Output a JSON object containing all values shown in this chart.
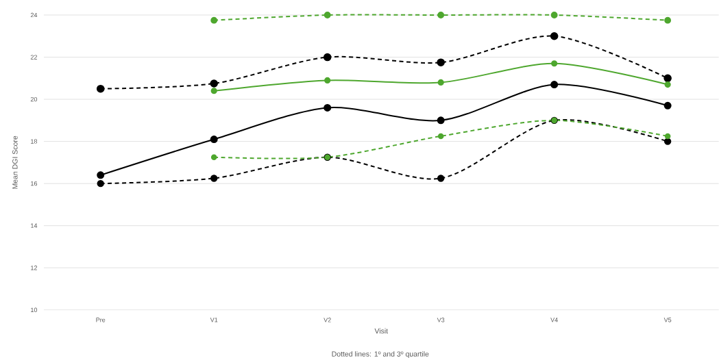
{
  "chart_data": {
    "type": "line",
    "xlabel": "Visit",
    "ylabel": "Mean DGI Score",
    "annotations": [
      "Dotted lines: 1º and 3º quartile"
    ],
    "categories": [
      "Pre",
      "V1",
      "V2",
      "V3",
      "V4",
      "V5"
    ],
    "series": [
      {
        "color": "#000000",
        "line_style": "dashed",
        "values": [
          20.5,
          20.75,
          22.0,
          21.75,
          23.0,
          21.0
        ]
      },
      {
        "color": "#000000",
        "line_style": "solid",
        "values": [
          16.4,
          18.1,
          19.6,
          19.0,
          20.7,
          19.7
        ]
      },
      {
        "color": "#000000",
        "line_style": "dashed",
        "values": [
          16.0,
          16.25,
          17.25,
          16.25,
          19.0,
          18.0
        ]
      },
      {
        "color": "#4ea72e",
        "line_style": "dashed",
        "values": [
          null,
          23.75,
          24.0,
          24.0,
          24.0,
          23.75
        ]
      },
      {
        "color": "#4ea72e",
        "line_style": "solid",
        "values": [
          null,
          20.4,
          20.9,
          20.8,
          21.7,
          20.7
        ]
      },
      {
        "color": "#4ea72e",
        "line_style": "dashed",
        "values": [
          null,
          17.25,
          17.25,
          18.25,
          19.0,
          18.25
        ]
      }
    ],
    "ylim": [
      10,
      24
    ],
    "yticks": [
      10,
      12,
      14,
      16,
      18,
      20,
      22,
      24
    ],
    "grid": "y",
    "marker": "circle"
  }
}
